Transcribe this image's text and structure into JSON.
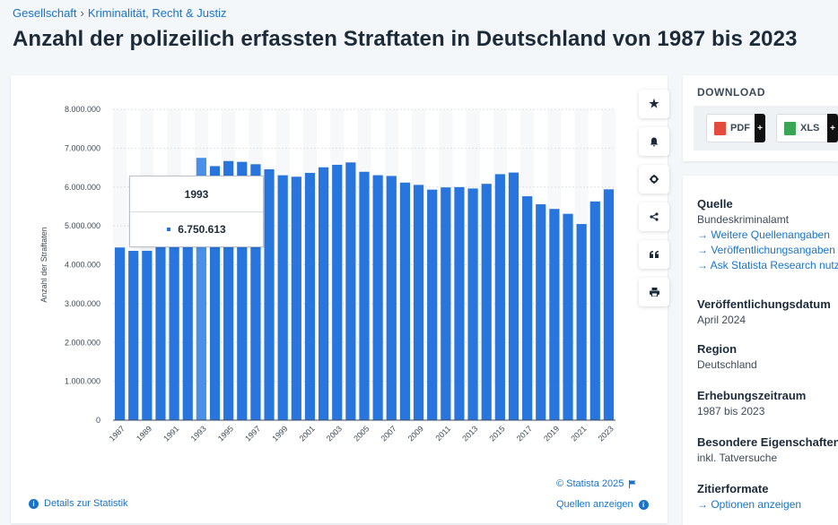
{
  "breadcrumb": {
    "item1": "Gesellschaft",
    "separator": "›",
    "item2": "Kriminalität, Recht & Justiz"
  },
  "page_title": "Anzahl der polizeilich erfassten Straftaten in Deutschland von 1987 bis 2023",
  "chart_data": {
    "type": "bar",
    "title": "",
    "xlabel": "",
    "ylabel": "Anzahl der Straftaten",
    "ylim": [
      0,
      8000000
    ],
    "yticks": [
      "0",
      "1.000.000",
      "2.000.000",
      "3.000.000",
      "4.000.000",
      "5.000.000",
      "6.000.000",
      "7.000.000",
      "8.000.000"
    ],
    "grid": true,
    "bar_color": "#2876dd",
    "highlight_color": "#4a90e8",
    "highlight_category": "1993",
    "categories": [
      "1987",
      "1988",
      "1989",
      "1990",
      "1991",
      "1992",
      "1993",
      "1994",
      "1995",
      "1996",
      "1997",
      "1998",
      "1999",
      "2000",
      "2001",
      "2002",
      "2003",
      "2004",
      "2005",
      "2006",
      "2007",
      "2008",
      "2009",
      "2010",
      "2011",
      "2012",
      "2013",
      "2014",
      "2015",
      "2016",
      "2017",
      "2018",
      "2019",
      "2020",
      "2021",
      "2022",
      "2023"
    ],
    "x_tick_labels": [
      "1987",
      "1989",
      "1991",
      "1993",
      "1995",
      "1997",
      "1999",
      "2001",
      "2003",
      "2005",
      "2007",
      "2009",
      "2011",
      "2013",
      "2015",
      "2017",
      "2019",
      "2021",
      "2023"
    ],
    "values": [
      4444108,
      4356726,
      4358573,
      4455333,
      5302796,
      6291519,
      6750613,
      6537748,
      6668717,
      6647598,
      6586165,
      6456996,
      6302316,
      6264723,
      6363865,
      6507394,
      6572135,
      6633156,
      6391715,
      6304223,
      6284661,
      6114128,
      6054330,
      5933278,
      5990679,
      5997040,
      5961662,
      6082064,
      6330649,
      6372526,
      5761984,
      5555520,
      5436401,
      5310621,
      5047860,
      5628584,
      5940667
    ]
  },
  "tooltip": {
    "year": "1993",
    "value": "6.750.613"
  },
  "side_tools": [
    {
      "name": "favorite-icon",
      "glyph": "★"
    },
    {
      "name": "bell-icon",
      "glyph": "🔔"
    },
    {
      "name": "gear-icon",
      "glyph": "⚙"
    },
    {
      "name": "share-icon",
      "glyph": "<"
    },
    {
      "name": "quote-icon",
      "glyph": "❝"
    },
    {
      "name": "print-icon",
      "glyph": "▭"
    }
  ],
  "credit": "© Statista 2025",
  "details_link": "Details zur Statistik",
  "sources_link": "Quellen anzeigen",
  "download": {
    "title": "DOWNLOAD",
    "pdf": "PDF",
    "xls": "XLS",
    "plus": "+"
  },
  "info": {
    "source_h": "Quelle",
    "source_v": "Bundeskriminalamt",
    "link1": "→ Weitere Quellenangaben",
    "link2": "→ Veröffentlichungsangaben",
    "link3": "→ Ask Statista Research nutzen",
    "pub_h": "Veröffentlichungsdatum",
    "pub_v": "April 2024",
    "region_h": "Region",
    "region_v": "Deutschland",
    "period_h": "Erhebungszeitraum",
    "period_v": "1987 bis 2023",
    "special_h": "Besondere Eigenschaften",
    "special_v": "inkl. Tatversuche",
    "cite_h": "Zitierformate",
    "cite_link": "→ Optionen anzeigen"
  }
}
